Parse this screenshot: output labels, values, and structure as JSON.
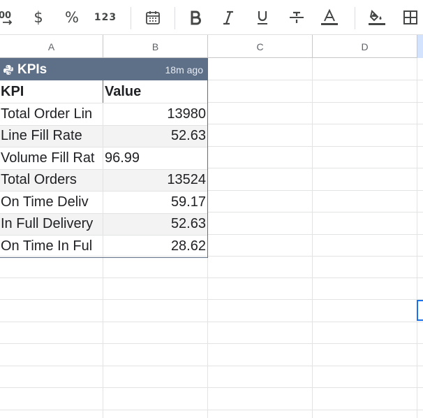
{
  "toolbar": {
    "decrease_decimal": ".00",
    "currency": "$",
    "percent": "%",
    "more_formats": "123"
  },
  "columns": [
    "A",
    "B",
    "C",
    "D"
  ],
  "table": {
    "title": "KPIs",
    "age": "18m ago",
    "header": {
      "kpi": "KPI",
      "value": "Value"
    },
    "rows": [
      {
        "kpi": "Total Order Lin",
        "value": "13980"
      },
      {
        "kpi": "Line Fill Rate",
        "value": "52.63"
      },
      {
        "kpi": "Volume Fill Rat",
        "value": "96.99"
      },
      {
        "kpi": "Total Orders",
        "value": "13524"
      },
      {
        "kpi": "On Time Deliv",
        "value": "59.17"
      },
      {
        "kpi": "In Full Delivery",
        "value": "52.63"
      },
      {
        "kpi": "On Time In Ful",
        "value": "28.62"
      }
    ]
  },
  "colors": {
    "header_bg": "#5e6f88",
    "accent": "#1a73e8",
    "icon": "#444746"
  }
}
